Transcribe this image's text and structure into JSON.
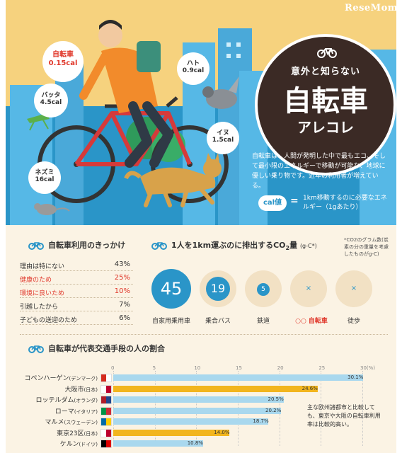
{
  "logo": "ReseMom",
  "hero": {
    "title": {
      "line1": "意外と知らない",
      "line2": "自転車",
      "line3": "アレコレ"
    },
    "bubbles": [
      {
        "name": "自転車",
        "cal": "0.15cal"
      },
      {
        "name": "バッタ",
        "cal": "4.5cal"
      },
      {
        "name": "ネズミ",
        "cal": "16cal"
      },
      {
        "name": "ハト",
        "cal": "0.9cal"
      },
      {
        "name": "イヌ",
        "cal": "1.5cal"
      }
    ],
    "intro": "自転車は、人間が発明した中で最もエコ、そして最小限のエネルギーで移動が可能な、地球に優しい乗り物です。近年の利用者が増えている。",
    "cal_pill": "cal値",
    "cal_eq": "=",
    "cal_def": "1km移動するのに必要なエネルギー（1gあたり）"
  },
  "reasons": {
    "title": "自転車利用のきっかけ",
    "items": [
      {
        "label": "理由は特にない",
        "value": "43%",
        "highlight": false
      },
      {
        "label": "健康のため",
        "value": "25%",
        "highlight": true
      },
      {
        "label": "環境に良いため",
        "value": "10%",
        "highlight": true
      },
      {
        "label": "引越したから",
        "value": "7%",
        "highlight": false
      },
      {
        "label": "子どもの送迎のため",
        "value": "6%",
        "highlight": false
      }
    ]
  },
  "co2": {
    "title": "1人を1km運ぶのに排出するCO",
    "title_sub": "2",
    "title_end": "量",
    "unit": "(g-C*)",
    "note": "*CO2のグラム数(炭素の分の重量を考慮したものがg-C)",
    "items": [
      {
        "value": "45",
        "label": "自家用乗用車"
      },
      {
        "value": "19",
        "label": "乗合バス"
      },
      {
        "value": "5",
        "label": "鉄道"
      },
      {
        "value": "×",
        "label": "自転車"
      },
      {
        "value": "×",
        "label": "徒歩"
      }
    ]
  },
  "share": {
    "title": "自転車が代表交通手段の人の割合",
    "note": "主な欧州諸都市と比較しても、東京や大阪の自転車利用率は比較的高い。",
    "colors": {
      "normal": "#a9d8ee",
      "highlight": "#f2b51d"
    }
  },
  "chart_data": {
    "type": "bar",
    "orientation": "horizontal",
    "title": "自転車が代表交通手段の人の割合",
    "categories": [
      "コペンハーゲン(デンマーク)",
      "大阪市(日本)",
      "ロッテルダム(オランダ)",
      "ローマ(イタリア)",
      "マルメ(スウェーデン)",
      "東京23区(日本)",
      "ケルン(ドイツ)"
    ],
    "city_names": [
      "コペンハーゲン",
      "大阪市",
      "ロッテルダム",
      "ローマ",
      "マルメ",
      "東京23区",
      "ケルン"
    ],
    "countries": [
      "(デンマーク)",
      "(日本)",
      "(オランダ)",
      "(イタリア)",
      "(スウェーデン)",
      "(日本)",
      "(ドイツ)"
    ],
    "values": [
      30.1,
      24.6,
      20.5,
      20.2,
      18.7,
      14.0,
      10.8
    ],
    "value_labels": [
      "30.1%",
      "24.6%",
      "20.5%",
      "20.2%",
      "18.7%",
      "14.0%",
      "10.8%"
    ],
    "highlight": [
      false,
      true,
      false,
      false,
      false,
      true,
      false
    ],
    "xlim": [
      0,
      30
    ],
    "xticks": [
      "0",
      "5",
      "10",
      "15",
      "20",
      "25",
      "30(%)"
    ],
    "grid": true
  }
}
